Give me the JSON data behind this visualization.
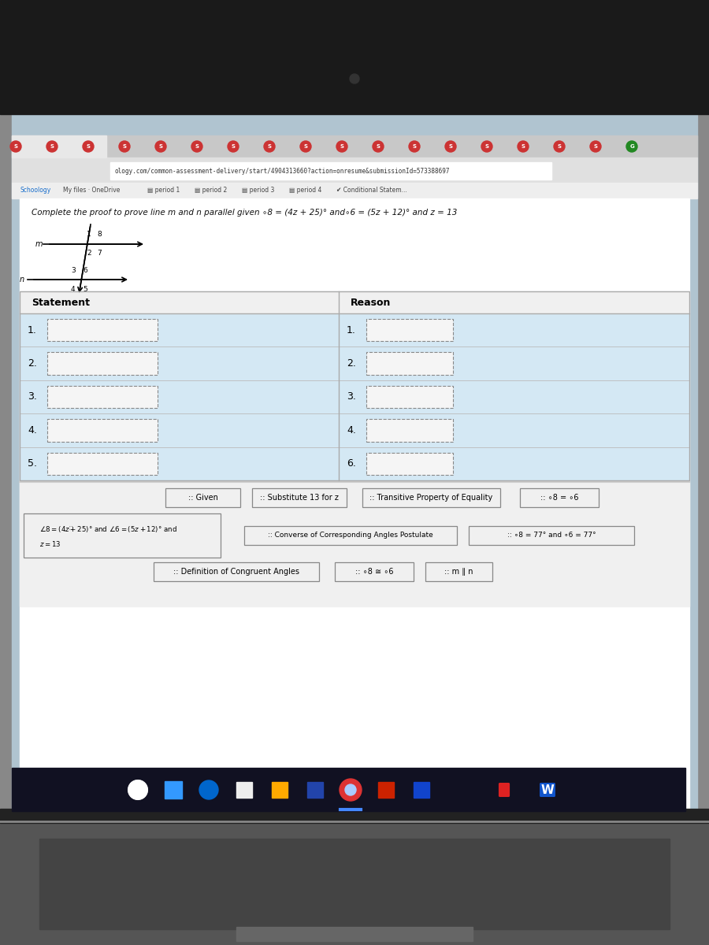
{
  "title": "Complete the proof to prove line m and n parallel given ∘8 = (4z + 25)° and∘6 = (5z + 12)° and z = 13",
  "url_bar_text": "ology.com/common-assessment-delivery/start/4904313660?action=onresume&submissionId=573388697",
  "bookmarks": [
    "Schoology",
    "My files · OneDrive",
    "▤ period 1",
    "▤ period 2",
    "▤ period 3",
    "▤ period 4",
    "✔ Conditional Statem..."
  ],
  "answer_tiles_row1": [
    ":: Given",
    ":: Substitute 13 for z",
    ":: Transitive Property of Equality",
    ":: ∘8 = ∘6"
  ],
  "answer_tiles_row2_left": "::\n∘8 = (4z + 25)° and ∘6 = (5z + 12)° and\nz = 13",
  "answer_tiles_row2": [
    ":: Converse of Corresponding Angles Postulate",
    ":: ∘8 = 77° and ∘6 = 77°"
  ],
  "answer_tiles_row3": [
    ":: Definition of Congruent Angles",
    ":: ∘8 ≅ ∘6",
    ":: m ∥ n"
  ],
  "row_nums_stmt": [
    "1.",
    "2.",
    "3.",
    "4.",
    "5."
  ],
  "row_nums_rsn": [
    "1.",
    "2.",
    "3.",
    "4.",
    "6."
  ],
  "bg_outer": "#555555",
  "bg_bezel_top": "#1a1a1a",
  "bg_browser": "#d4d4d4",
  "bg_url": "#f5f5f5",
  "bg_tabbar": "#c0c0c0",
  "bg_bookmark": "#e8e8e8",
  "bg_screen": "#b0c4d0",
  "bg_content": "#ffffff",
  "bg_table_row": "#cfe0eb",
  "bg_tile": "#f2f2f2",
  "tile_border": "#999999",
  "taskbar_bg": "#111122",
  "laptop_base_color": "#444444",
  "laptop_hinge_color": "#888888"
}
